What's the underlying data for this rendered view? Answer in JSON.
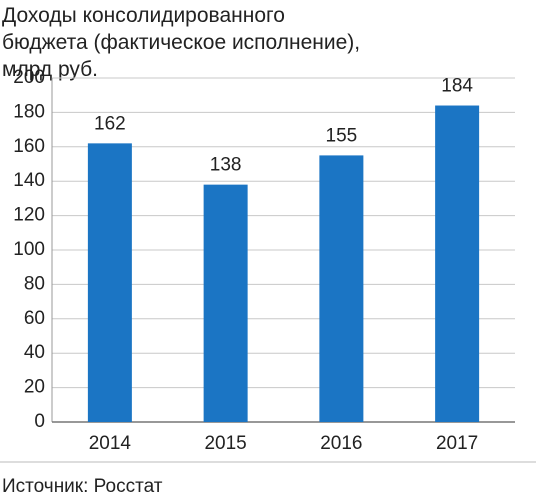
{
  "chart_data": {
    "type": "bar",
    "title": "Доходы консолидированного бюджета (фактическое исполнение), млрд руб.",
    "categories": [
      "2014",
      "2015",
      "2016",
      "2017"
    ],
    "values": [
      162,
      138,
      155,
      184
    ],
    "color": "#1b75c4",
    "ylim": [
      0,
      200
    ],
    "yticks": [
      0,
      20,
      40,
      60,
      80,
      100,
      120,
      140,
      160,
      180,
      200
    ],
    "grid": true,
    "source": "Источник: Росстат"
  }
}
